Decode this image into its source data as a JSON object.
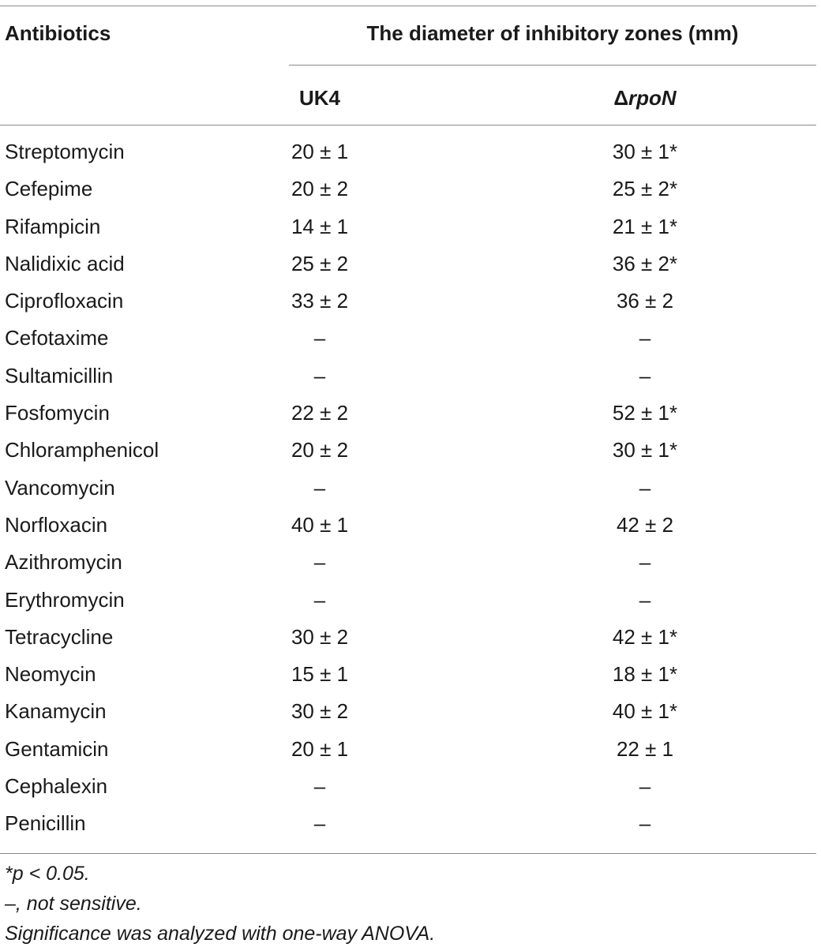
{
  "header": {
    "col1": "Antibiotics",
    "group": "The diameter of inhibitory zones (mm)",
    "uk4": "UK4",
    "rpon_delta": "Δ",
    "rpon_name": "rpoN"
  },
  "rows": [
    {
      "name": "Streptomycin",
      "uk4": "20 ± 1",
      "rpon": "30 ± 1*"
    },
    {
      "name": "Cefepime",
      "uk4": "20 ± 2",
      "rpon": "25 ± 2*"
    },
    {
      "name": "Rifampicin",
      "uk4": "14 ± 1",
      "rpon": "21 ± 1*"
    },
    {
      "name": "Nalidixic acid",
      "uk4": "25 ± 2",
      "rpon": "36 ± 2*"
    },
    {
      "name": "Ciprofloxacin",
      "uk4": "33 ± 2",
      "rpon": "36 ± 2"
    },
    {
      "name": "Cefotaxime",
      "uk4": "–",
      "rpon": "–"
    },
    {
      "name": "Sultamicillin",
      "uk4": "–",
      "rpon": "–"
    },
    {
      "name": "Fosfomycin",
      "uk4": "22 ± 2",
      "rpon": "52 ± 1*"
    },
    {
      "name": "Chloramphenicol",
      "uk4": "20 ± 2",
      "rpon": "30 ± 1*"
    },
    {
      "name": "Vancomycin",
      "uk4": "–",
      "rpon": "–"
    },
    {
      "name": "Norfloxacin",
      "uk4": "40 ± 1",
      "rpon": "42 ± 2"
    },
    {
      "name": "Azithromycin",
      "uk4": "–",
      "rpon": "–"
    },
    {
      "name": "Erythromycin",
      "uk4": "–",
      "rpon": "–"
    },
    {
      "name": "Tetracycline",
      "uk4": "30 ± 2",
      "rpon": "42 ± 1*"
    },
    {
      "name": "Neomycin",
      "uk4": "15 ± 1",
      "rpon": "18 ± 1*"
    },
    {
      "name": "Kanamycin",
      "uk4": "30 ± 2",
      "rpon": "40 ± 1*"
    },
    {
      "name": "Gentamicin",
      "uk4": "20 ± 1",
      "rpon": "22 ± 1"
    },
    {
      "name": "Cephalexin",
      "uk4": "–",
      "rpon": "–"
    },
    {
      "name": "Penicillin",
      "uk4": "–",
      "rpon": "–"
    }
  ],
  "footnotes": [
    "*p < 0.05.",
    "–, not sensitive.",
    "Significance was analyzed with one-way ANOVA."
  ]
}
